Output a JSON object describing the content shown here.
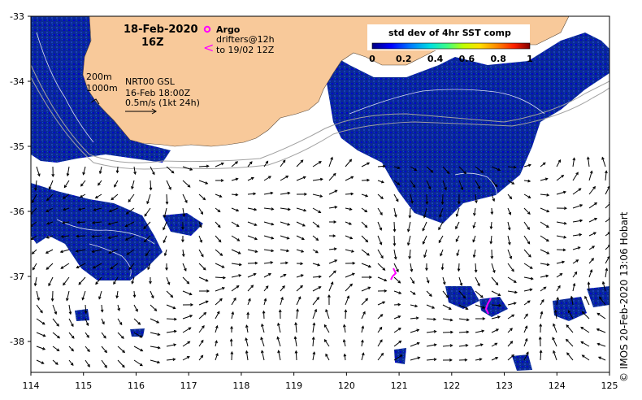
{
  "header": {
    "date": "18-Feb-2020",
    "time": "16Z"
  },
  "legend_argo": {
    "argo_label": "Argo",
    "drifters_label": "drifters@12h",
    "drifters_sub": "to 19/02 12Z",
    "colors": {
      "argo": "#ff00ff",
      "drifters": "#ff00ff"
    }
  },
  "colorbar": {
    "title": "std dev of 4hr SST comp",
    "ticks": [
      "0",
      "0.2",
      "0.4",
      "0.6",
      "0.8",
      "1"
    ],
    "stops": [
      "#000080",
      "#0000ff",
      "#0080ff",
      "#00e0e0",
      "#40ff80",
      "#c0ff00",
      "#ffe000",
      "#ff8000",
      "#ff2000",
      "#800000"
    ]
  },
  "contours_note": {
    "c200": "200m",
    "c1000": "1000m"
  },
  "currents_note": {
    "line1": "NRT00 GSL",
    "line2": "16-Feb 18:00Z",
    "line3": "0.5m/s (1kt 24h)"
  },
  "axes": {
    "x_ticks": [
      "114",
      "115",
      "116",
      "117",
      "118",
      "119",
      "120",
      "121",
      "122",
      "123",
      "124",
      "125"
    ],
    "y_ticks": [
      "-33",
      "-34",
      "-35",
      "-36",
      "-37",
      "-38"
    ]
  },
  "credit": "© IMOS 20-Feb-2020 13:06 Hobart",
  "colors": {
    "land": "#f8c99a",
    "ocean_data": "#0a2896",
    "isobath": "#a0a0a0",
    "arrow": "#000000"
  }
}
